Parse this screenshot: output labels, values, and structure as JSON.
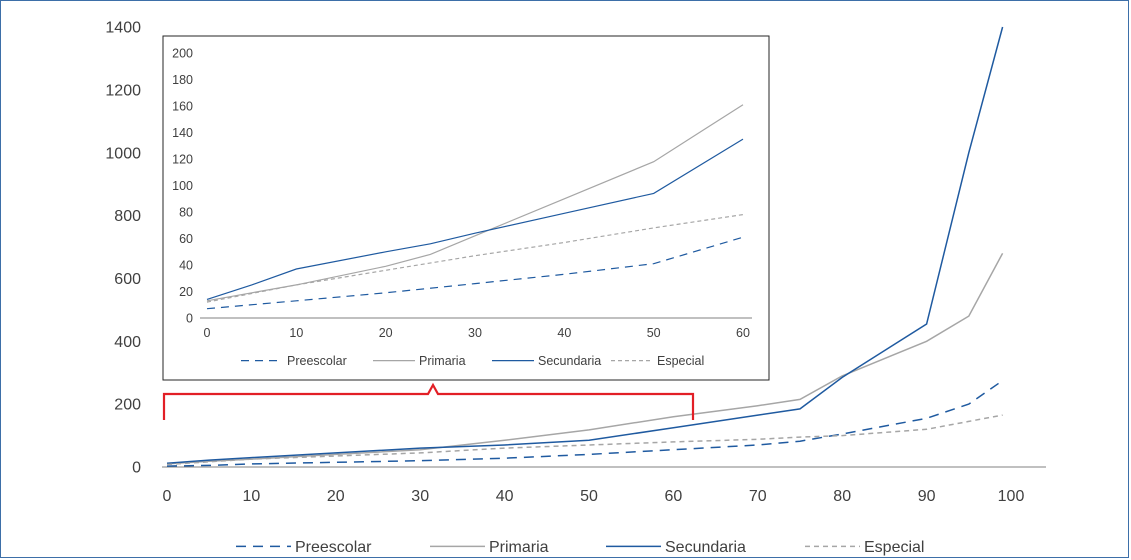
{
  "colors": {
    "preescolar": "#1f5aa0",
    "primaria": "#a6a6a6",
    "secundaria": "#1f5aa0",
    "especial": "#a6a6a6",
    "bracket": "#e21f26",
    "axis": "#808080",
    "frame": "#3d6fa8"
  },
  "chart_data": [
    {
      "type": "line",
      "grid": false,
      "legend_position": "bottom",
      "xlim": [
        0,
        100
      ],
      "ylim": [
        0,
        1400
      ],
      "x_ticks": [
        "0",
        "10",
        "20",
        "30",
        "40",
        "50",
        "60",
        "70",
        "80",
        "90",
        "100"
      ],
      "y_ticks": [
        "0",
        "200",
        "400",
        "600",
        "800",
        "1000",
        "1200",
        "1400"
      ],
      "series": [
        {
          "name": "Preescolar",
          "style": "dashed",
          "points": [
            [
              0,
              3
            ],
            [
              5,
              5
            ],
            [
              10,
              10
            ],
            [
              20,
              15
            ],
            [
              30,
              20
            ],
            [
              40,
              28
            ],
            [
              50,
              40
            ],
            [
              60,
              55
            ],
            [
              70,
              70
            ],
            [
              75,
              82
            ],
            [
              80,
              105
            ],
            [
              90,
              155
            ],
            [
              95,
              200
            ],
            [
              99,
              275
            ]
          ]
        },
        {
          "name": "Primaria",
          "style": "solid",
          "points": [
            [
              0,
              10
            ],
            [
              5,
              18
            ],
            [
              10,
              25
            ],
            [
              20,
              40
            ],
            [
              30,
              55
            ],
            [
              40,
              85
            ],
            [
              50,
              118
            ],
            [
              60,
              160
            ],
            [
              70,
              195
            ],
            [
              75,
              215
            ],
            [
              80,
              290
            ],
            [
              90,
              400
            ],
            [
              95,
              480
            ],
            [
              99,
              680
            ]
          ]
        },
        {
          "name": "Secundaria",
          "style": "solid",
          "points": [
            [
              0,
              12
            ],
            [
              5,
              22
            ],
            [
              10,
              30
            ],
            [
              20,
              45
            ],
            [
              30,
              60
            ],
            [
              40,
              70
            ],
            [
              50,
              85
            ],
            [
              60,
              125
            ],
            [
              70,
              165
            ],
            [
              75,
              185
            ],
            [
              80,
              285
            ],
            [
              90,
              455
            ],
            [
              95,
              1000
            ],
            [
              99,
              1400
            ]
          ]
        },
        {
          "name": "Especial",
          "style": "dashed",
          "points": [
            [
              0,
              8
            ],
            [
              10,
              25
            ],
            [
              20,
              35
            ],
            [
              30,
              45
            ],
            [
              40,
              60
            ],
            [
              50,
              70
            ],
            [
              60,
              80
            ],
            [
              70,
              88
            ],
            [
              75,
              95
            ],
            [
              80,
              100
            ],
            [
              90,
              120
            ],
            [
              95,
              145
            ],
            [
              99,
              165
            ]
          ]
        }
      ]
    },
    {
      "type": "line",
      "grid": false,
      "legend_position": "bottom",
      "xlim": [
        0,
        60
      ],
      "ylim": [
        0,
        200
      ],
      "x_ticks": [
        "0",
        "10",
        "20",
        "30",
        "40",
        "50",
        "60"
      ],
      "y_ticks": [
        "0",
        "20",
        "40",
        "60",
        "80",
        "100",
        "120",
        "140",
        "160",
        "180",
        "200"
      ],
      "series": [
        {
          "name": "Preescolar",
          "style": "dashed",
          "points": [
            [
              0,
              7
            ],
            [
              10,
              13
            ],
            [
              20,
              19
            ],
            [
              30,
              26
            ],
            [
              40,
              33
            ],
            [
              50,
              41
            ],
            [
              60,
              61
            ]
          ]
        },
        {
          "name": "Primaria",
          "style": "solid",
          "points": [
            [
              0,
              13
            ],
            [
              5,
              19
            ],
            [
              10,
              25
            ],
            [
              20,
              39
            ],
            [
              25,
              48
            ],
            [
              30,
              62
            ],
            [
              40,
              90
            ],
            [
              50,
              118
            ],
            [
              60,
              161
            ]
          ]
        },
        {
          "name": "Secundaria",
          "style": "solid",
          "points": [
            [
              0,
              14
            ],
            [
              5,
              25
            ],
            [
              10,
              37
            ],
            [
              20,
              50
            ],
            [
              25,
              56
            ],
            [
              30,
              64
            ],
            [
              40,
              79
            ],
            [
              50,
              94
            ],
            [
              60,
              135
            ]
          ]
        },
        {
          "name": "Especial",
          "style": "dashed",
          "points": [
            [
              0,
              12
            ],
            [
              10,
              25
            ],
            [
              20,
              36
            ],
            [
              30,
              47
            ],
            [
              40,
              57
            ],
            [
              50,
              68
            ],
            [
              60,
              78
            ]
          ]
        }
      ]
    }
  ]
}
